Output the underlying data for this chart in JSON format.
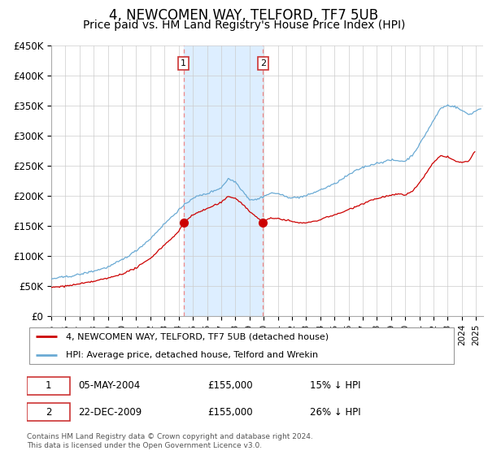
{
  "title": "4, NEWCOMEN WAY, TELFORD, TF7 5UB",
  "subtitle": "Price paid vs. HM Land Registry's House Price Index (HPI)",
  "title_fontsize": 12,
  "subtitle_fontsize": 10,
  "ylim": [
    0,
    450000
  ],
  "yticks": [
    0,
    50000,
    100000,
    150000,
    200000,
    250000,
    300000,
    350000,
    400000,
    450000
  ],
  "ytick_labels": [
    "£0",
    "£50K",
    "£100K",
    "£150K",
    "£200K",
    "£250K",
    "£300K",
    "£350K",
    "£400K",
    "£450K"
  ],
  "hpi_color": "#6aaad4",
  "price_color": "#cc0000",
  "shade_color": "#ddeeff",
  "sale1_x": 2004.34,
  "sale2_x": 2009.95,
  "sale1_price": 155000,
  "sale2_price": 155000,
  "legend_line1": "4, NEWCOMEN WAY, TELFORD, TF7 5UB (detached house)",
  "legend_line2": "HPI: Average price, detached house, Telford and Wrekin",
  "table_row1": [
    "1",
    "05-MAY-2004",
    "£155,000",
    "15% ↓ HPI"
  ],
  "table_row2": [
    "2",
    "22-DEC-2009",
    "£155,000",
    "26% ↓ HPI"
  ],
  "footer": "Contains HM Land Registry data © Crown copyright and database right 2024.\nThis data is licensed under the Open Government Licence v3.0.",
  "xlim_left": 1995.0,
  "xlim_right": 2025.5
}
